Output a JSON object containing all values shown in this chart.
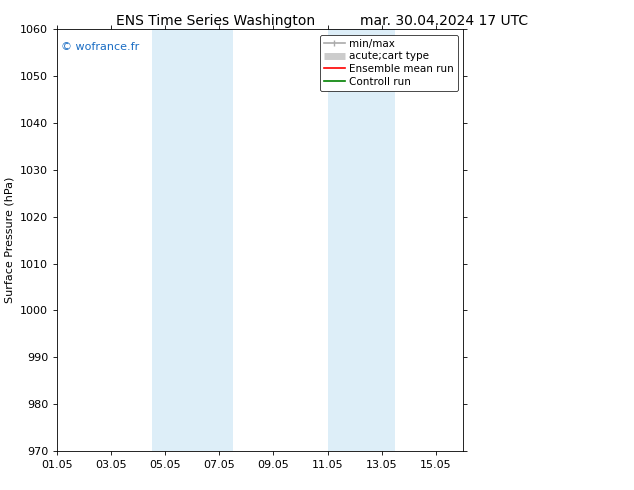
{
  "title_left": "ENS Time Series Washington",
  "title_right": "mar. 30.04.2024 17 UTC",
  "ylabel": "Surface Pressure (hPa)",
  "ylim": [
    970,
    1060
  ],
  "yticks": [
    970,
    980,
    990,
    1000,
    1010,
    1020,
    1030,
    1040,
    1050,
    1060
  ],
  "xlim": [
    0,
    15
  ],
  "xtick_labels": [
    "01.05",
    "03.05",
    "05.05",
    "07.05",
    "09.05",
    "11.05",
    "13.05",
    "15.05"
  ],
  "xtick_positions": [
    0,
    2,
    4,
    6,
    8,
    10,
    12,
    14
  ],
  "shaded_bands": [
    {
      "x_start": 3.5,
      "x_end": 5.5,
      "color": "#ddeef8"
    },
    {
      "x_start": 5.5,
      "x_end": 6.5,
      "color": "#ddeef8"
    },
    {
      "x_start": 10.0,
      "x_end": 11.0,
      "color": "#ddeef8"
    },
    {
      "x_start": 11.0,
      "x_end": 12.5,
      "color": "#ddeef8"
    }
  ],
  "legend_entries": [
    {
      "label": "min/max",
      "color": "#aaaaaa",
      "lw": 1.2,
      "type": "line_with_cap"
    },
    {
      "label": "acute;cart type",
      "color": "#cccccc",
      "lw": 5,
      "type": "thick_line"
    },
    {
      "label": "Ensemble mean run",
      "color": "red",
      "lw": 1.2,
      "type": "line"
    },
    {
      "label": "Controll run",
      "color": "green",
      "lw": 1.2,
      "type": "line"
    }
  ],
  "watermark": "© wofrance.fr",
  "watermark_color": "#1a6dc4",
  "background_color": "#ffffff",
  "plot_bg_color": "#ffffff",
  "title_fontsize": 10,
  "axis_label_fontsize": 8,
  "tick_fontsize": 8,
  "legend_fontsize": 7.5
}
